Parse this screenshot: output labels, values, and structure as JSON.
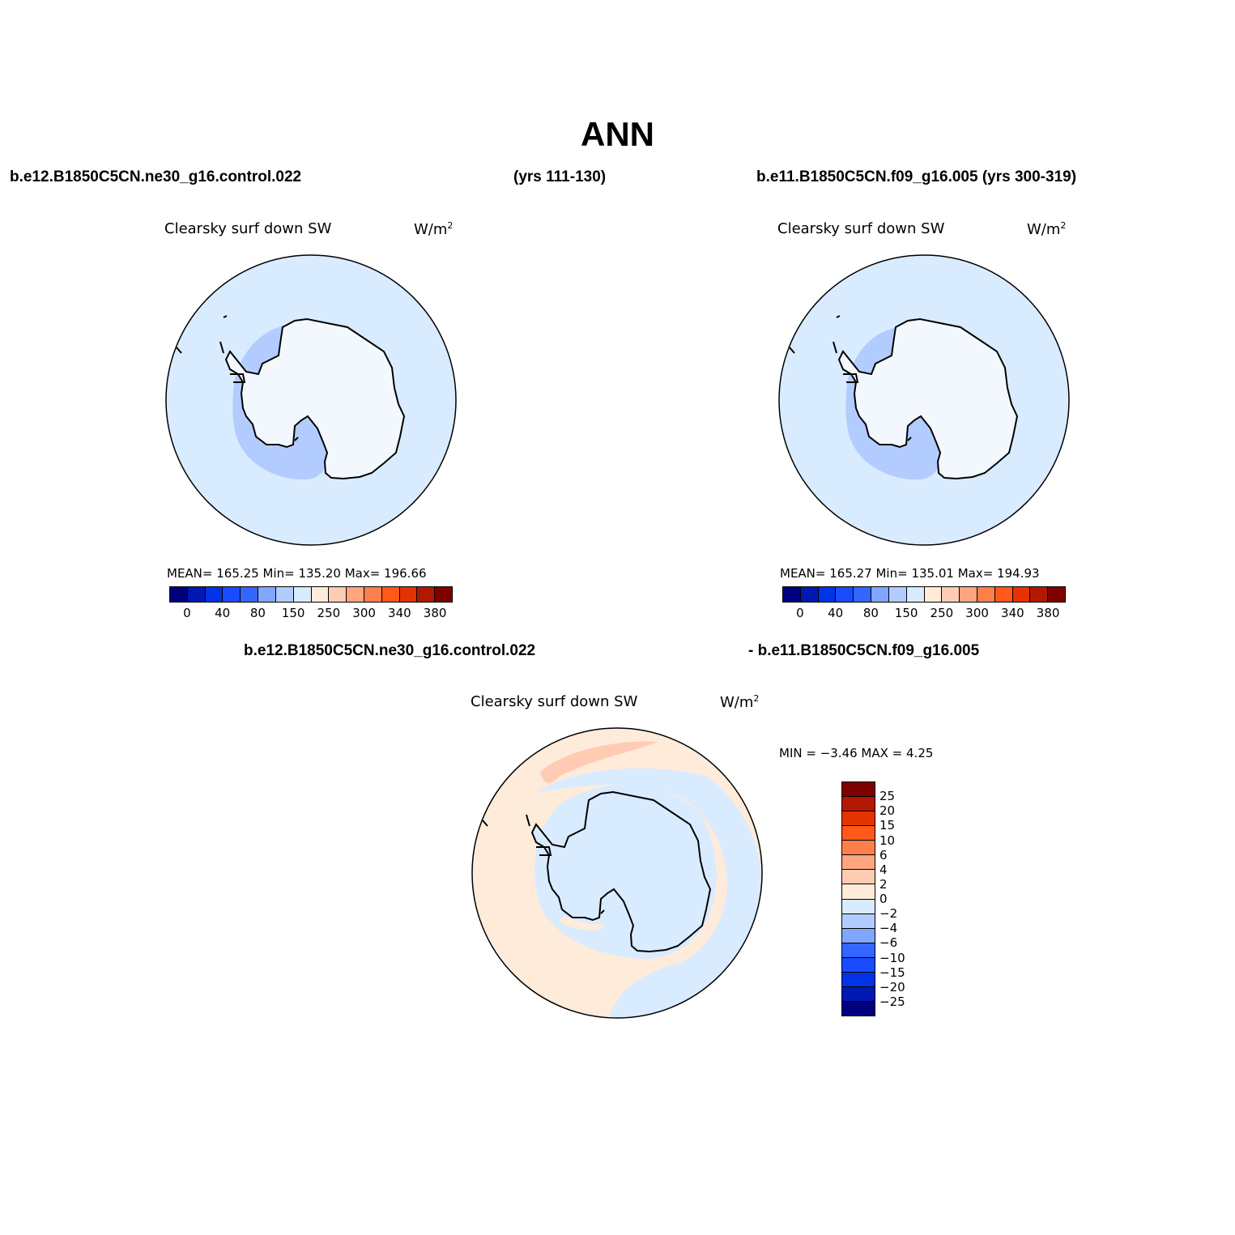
{
  "page": {
    "title": "ANN",
    "case1_label": "b.e12.B1850C5CN.ne30_g16.control.022",
    "case1_years": "(yrs 111-130)",
    "case2_label": "b.e11.B1850C5CN.f09_g16.005 (yrs 300-319)",
    "diff_label_left": "b.e12.B1850C5CN.ne30_g16.control.022",
    "diff_label_right": "- b.e11.B1850C5CN.f09_g16.005"
  },
  "panels": [
    {
      "variable": "Clearsky surf down SW",
      "units_base": "W/m",
      "units_exp": "2",
      "stats": "MEAN= 165.25   Min= 135.20   Max= 196.66"
    },
    {
      "variable": "Clearsky surf down SW",
      "units_base": "W/m",
      "units_exp": "2",
      "stats": "MEAN= 165.27   Min= 135.01   Max= 194.93"
    },
    {
      "variable": "Clearsky surf down SW",
      "units_base": "W/m",
      "units_exp": "2",
      "stats": "MIN =   −3.46  MAX =    4.25"
    }
  ],
  "colorbar_main": {
    "colors": [
      "#00007f",
      "#0019b2",
      "#0033e5",
      "#1a4cff",
      "#3366ff",
      "#80a6ff",
      "#b3ccff",
      "#d9ebff",
      "#ffebd9",
      "#ffccb3",
      "#ffa680",
      "#ff7f4c",
      "#ff591a",
      "#e53300",
      "#b21900",
      "#7f0000"
    ],
    "ticks": [
      "0",
      "40",
      "80",
      "150",
      "250",
      "300",
      "340",
      "380"
    ]
  },
  "colorbar_diff": {
    "colors": [
      "#7f0000",
      "#b21900",
      "#e53300",
      "#ff591a",
      "#ff7f4c",
      "#ffa680",
      "#ffccb3",
      "#ffebd9",
      "#d9ebff",
      "#b3ccff",
      "#80a6ff",
      "#3366ff",
      "#1a4cff",
      "#0033e5",
      "#0019b2",
      "#00007f"
    ],
    "ticks": [
      "25",
      "20",
      "15",
      "10",
      "6",
      "4",
      "2",
      "0",
      "−2",
      "−4",
      "−6",
      "−10",
      "−15",
      "−20",
      "−25"
    ]
  },
  "fill_colors": {
    "ocean_main": "#d9ebff",
    "coastal_main": "#b3ccff",
    "land_main": "#f3f8ff",
    "diff_pos": "#ffebd9",
    "diff_pos_strong": "#ffccb3",
    "diff_neg": "#d9ebff",
    "diff_neg_strong": "#b3ccff"
  }
}
